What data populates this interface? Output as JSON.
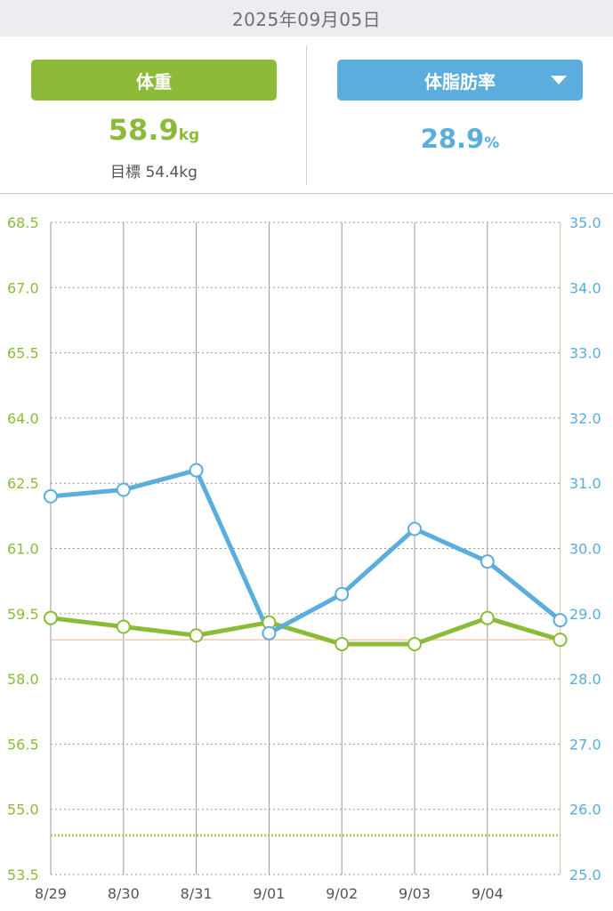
{
  "header": {
    "date": "2025年09月05日"
  },
  "weight_panel": {
    "label": "体重",
    "value": "58.9",
    "unit": "kg",
    "goal_text": "目標 54.4kg"
  },
  "fat_panel": {
    "label": "体脂肪率",
    "value": "28.9",
    "unit": "%"
  },
  "colors": {
    "weight": "#8cbb3a",
    "fat": "#5aaddc",
    "current_line": "#f4bfa0",
    "goal_line": "#a8d36a"
  },
  "chart_data": {
    "type": "line",
    "x": [
      "8/29",
      "8/30",
      "8/31",
      "9/01",
      "9/02",
      "9/03",
      "9/04",
      ""
    ],
    "x_tick_labels": [
      "8/29",
      "8/30",
      "8/31",
      "9/01",
      "9/02",
      "9/03",
      "9/04"
    ],
    "series": [
      {
        "axis": "left",
        "color": "#8cbb3a",
        "values": [
          59.4,
          59.2,
          59.0,
          59.3,
          58.8,
          58.8,
          59.4,
          58.9
        ]
      },
      {
        "axis": "right",
        "color": "#5aaddc",
        "values": [
          30.8,
          30.9,
          31.2,
          28.7,
          29.3,
          30.3,
          29.8,
          28.9
        ]
      }
    ],
    "left_axis": {
      "ylim": [
        53.5,
        68.5
      ],
      "ticks": [
        "68.5",
        "67.0",
        "65.5",
        "64.0",
        "62.5",
        "61.0",
        "59.5",
        "58.0",
        "56.5",
        "55.0",
        "53.5"
      ],
      "color": "#8cbb3a"
    },
    "right_axis": {
      "ylim": [
        25.0,
        35.0
      ],
      "ticks": [
        "35.0",
        "34.0",
        "33.0",
        "32.0",
        "31.0",
        "30.0",
        "29.0",
        "28.0",
        "27.0",
        "26.0",
        "25.0"
      ],
      "color": "#5aaddc"
    },
    "current_weight_line": 58.9,
    "goal_weight_line": 54.4,
    "grid": true
  }
}
